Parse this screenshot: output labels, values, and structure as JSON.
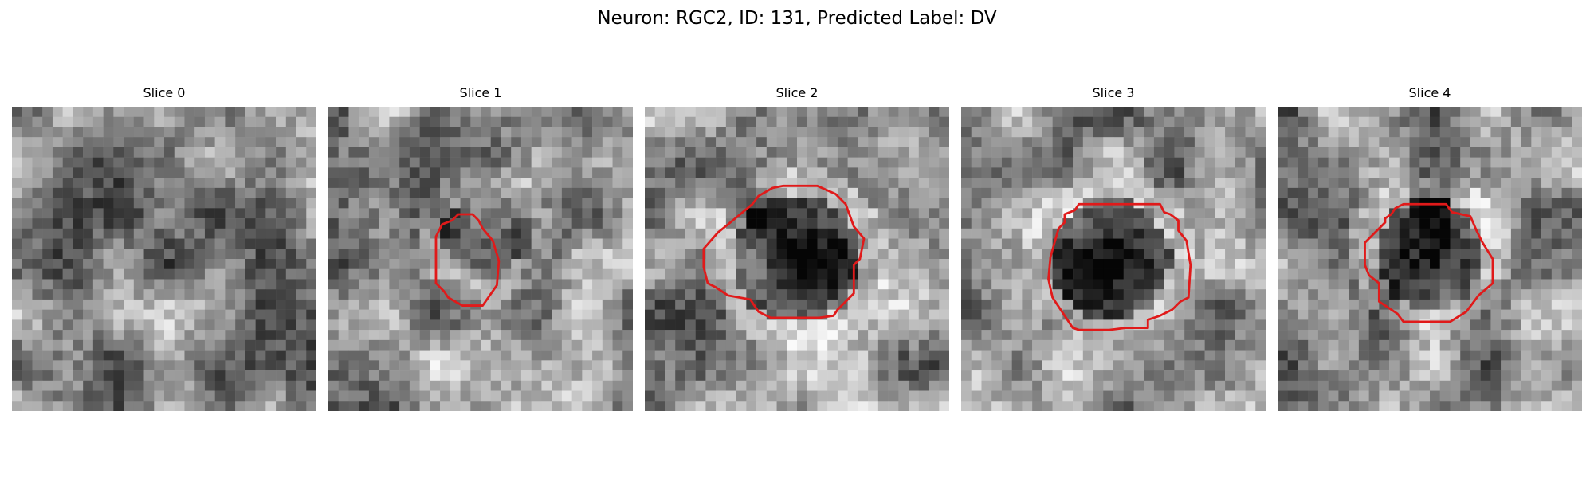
{
  "figure": {
    "title": "Neuron: RGC2, ID: 131, Predicted Label: DV"
  },
  "outline_color": "#e01a1a",
  "slices": [
    {
      "title": "Slice 0",
      "has_outline": false,
      "seed": 101,
      "dark_center": 0.0
    },
    {
      "title": "Slice 1",
      "has_outline": true,
      "seed": 202,
      "dark_center": 0.35
    },
    {
      "title": "Slice 2",
      "has_outline": true,
      "seed": 303,
      "dark_center": 0.5
    },
    {
      "title": "Slice 3",
      "has_outline": true,
      "seed": 404,
      "dark_center": 0.45
    },
    {
      "title": "Slice 4",
      "has_outline": true,
      "seed": 505,
      "dark_center": 0.45
    }
  ]
}
